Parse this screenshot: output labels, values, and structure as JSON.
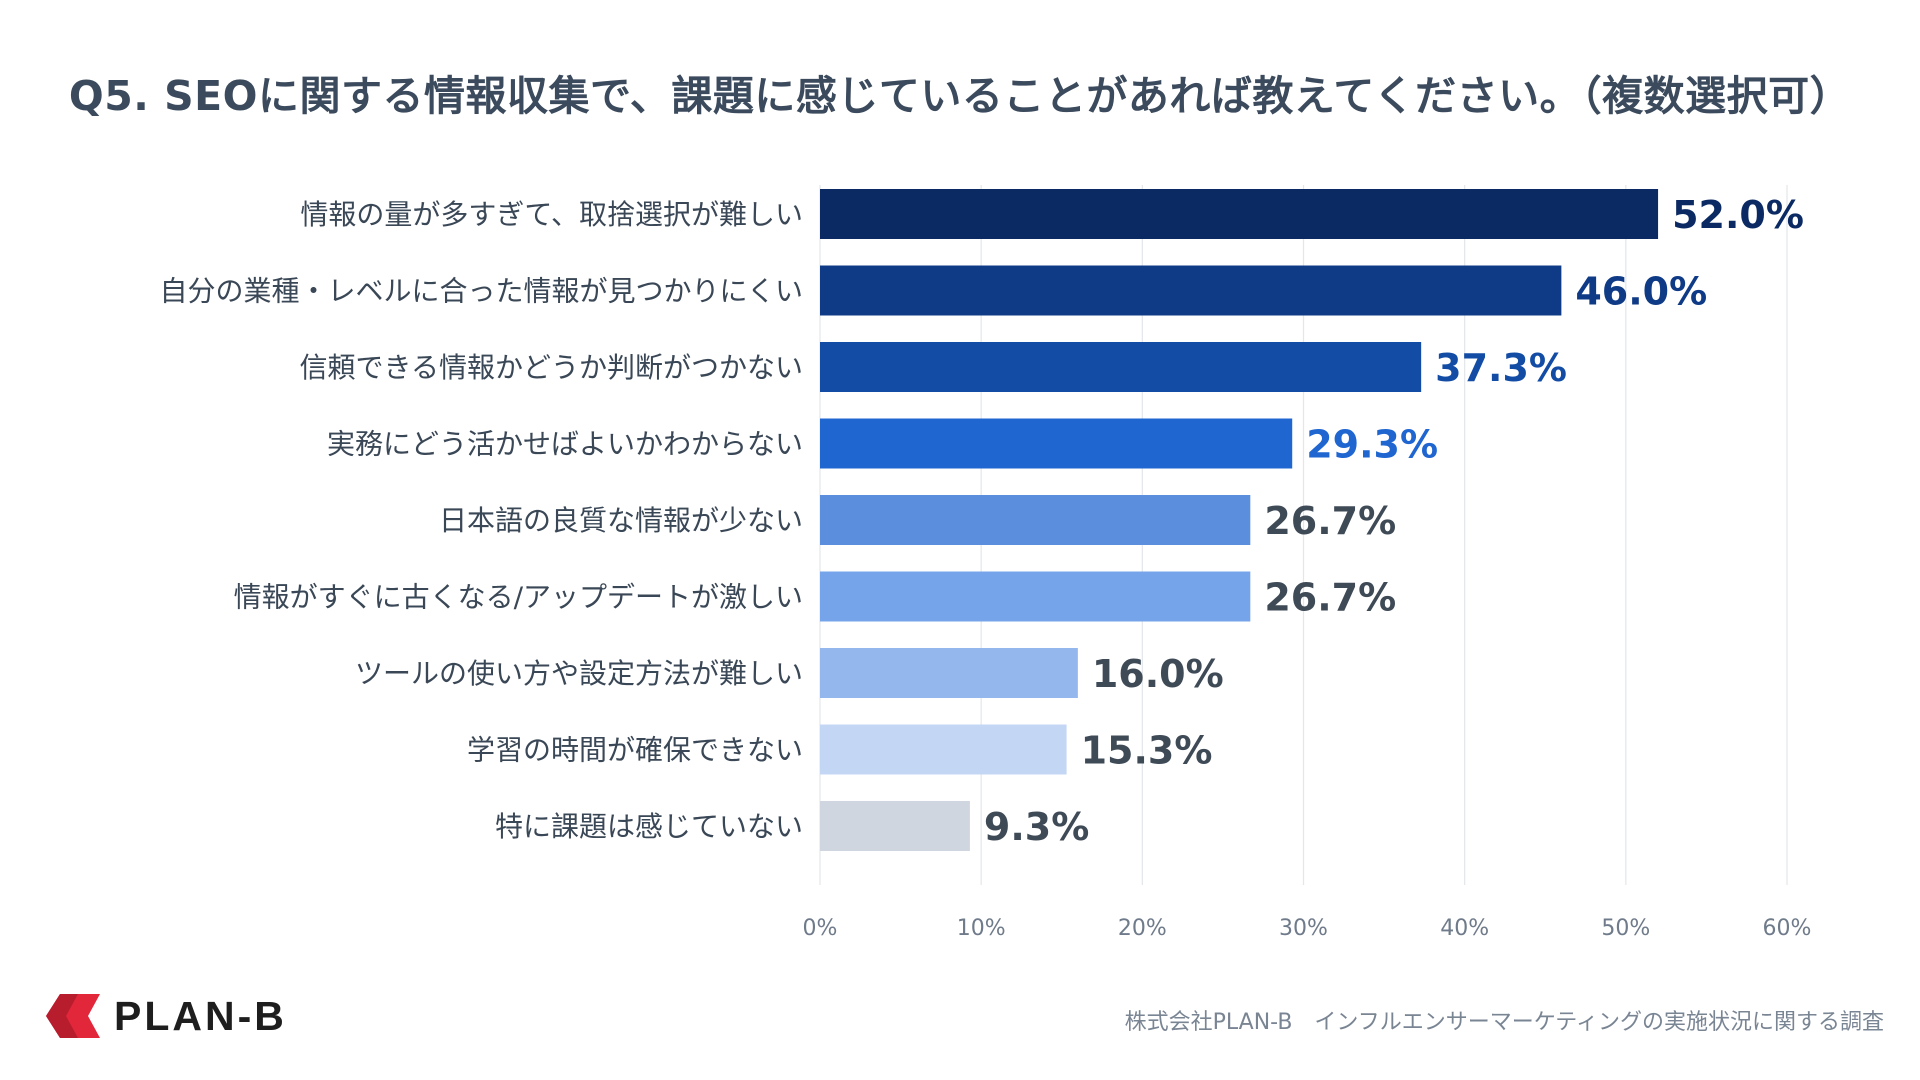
{
  "page": {
    "brand_color": "#e2273a",
    "logo_text": "PLAN-B",
    "source_text": "株式会社PLAN-B　インフルエンサーマーケティングの実施状況に関する調査"
  },
  "chart_data": {
    "type": "bar",
    "orientation": "horizontal",
    "title": "Q5. SEOに関する情報収集で、課題に感じていることがあれば教えてください。（複数選択可）",
    "categories": [
      "情報の量が多すぎて、取捨選択が難しい",
      "自分の業種・レベルに合った情報が見つかりにくい",
      "信頼できる情報かどうか判断がつかない",
      "実務にどう活かせばよいかわからない",
      "日本語の良質な情報が少ない",
      "情報がすぐに古くなる/アップデートが激しい",
      "ツールの使い方や設定方法が難しい",
      "学習の時間が確保できない",
      "特に課題は感じていない"
    ],
    "values": [
      52.0,
      46.0,
      37.3,
      29.3,
      26.7,
      26.7,
      16.0,
      15.3,
      9.3
    ],
    "value_labels": [
      "52.0%",
      "46.0%",
      "37.3%",
      "29.3%",
      "26.7%",
      "26.7%",
      "16.0%",
      "15.3%",
      "9.3%"
    ],
    "bar_colors": [
      "#0b2a63",
      "#0f3b86",
      "#124ca5",
      "#1f66d1",
      "#5b8fdd",
      "#76a4ea",
      "#94b8ee",
      "#c3d7f4",
      "#cfd6df"
    ],
    "label_colors": [
      "#0b2a63",
      "#0f3b86",
      "#124ca5",
      "#1f66d1",
      "#3f4a57",
      "#3f4a57",
      "#3f4a57",
      "#3f4a57",
      "#3f4a57"
    ],
    "xlim": [
      0,
      60
    ],
    "xticks": [
      0,
      10,
      20,
      30,
      40,
      50,
      60
    ],
    "xtick_labels": [
      "0%",
      "10%",
      "20%",
      "30%",
      "40%",
      "50%",
      "60%"
    ],
    "grid": true,
    "xlabel": "",
    "ylabel": ""
  }
}
